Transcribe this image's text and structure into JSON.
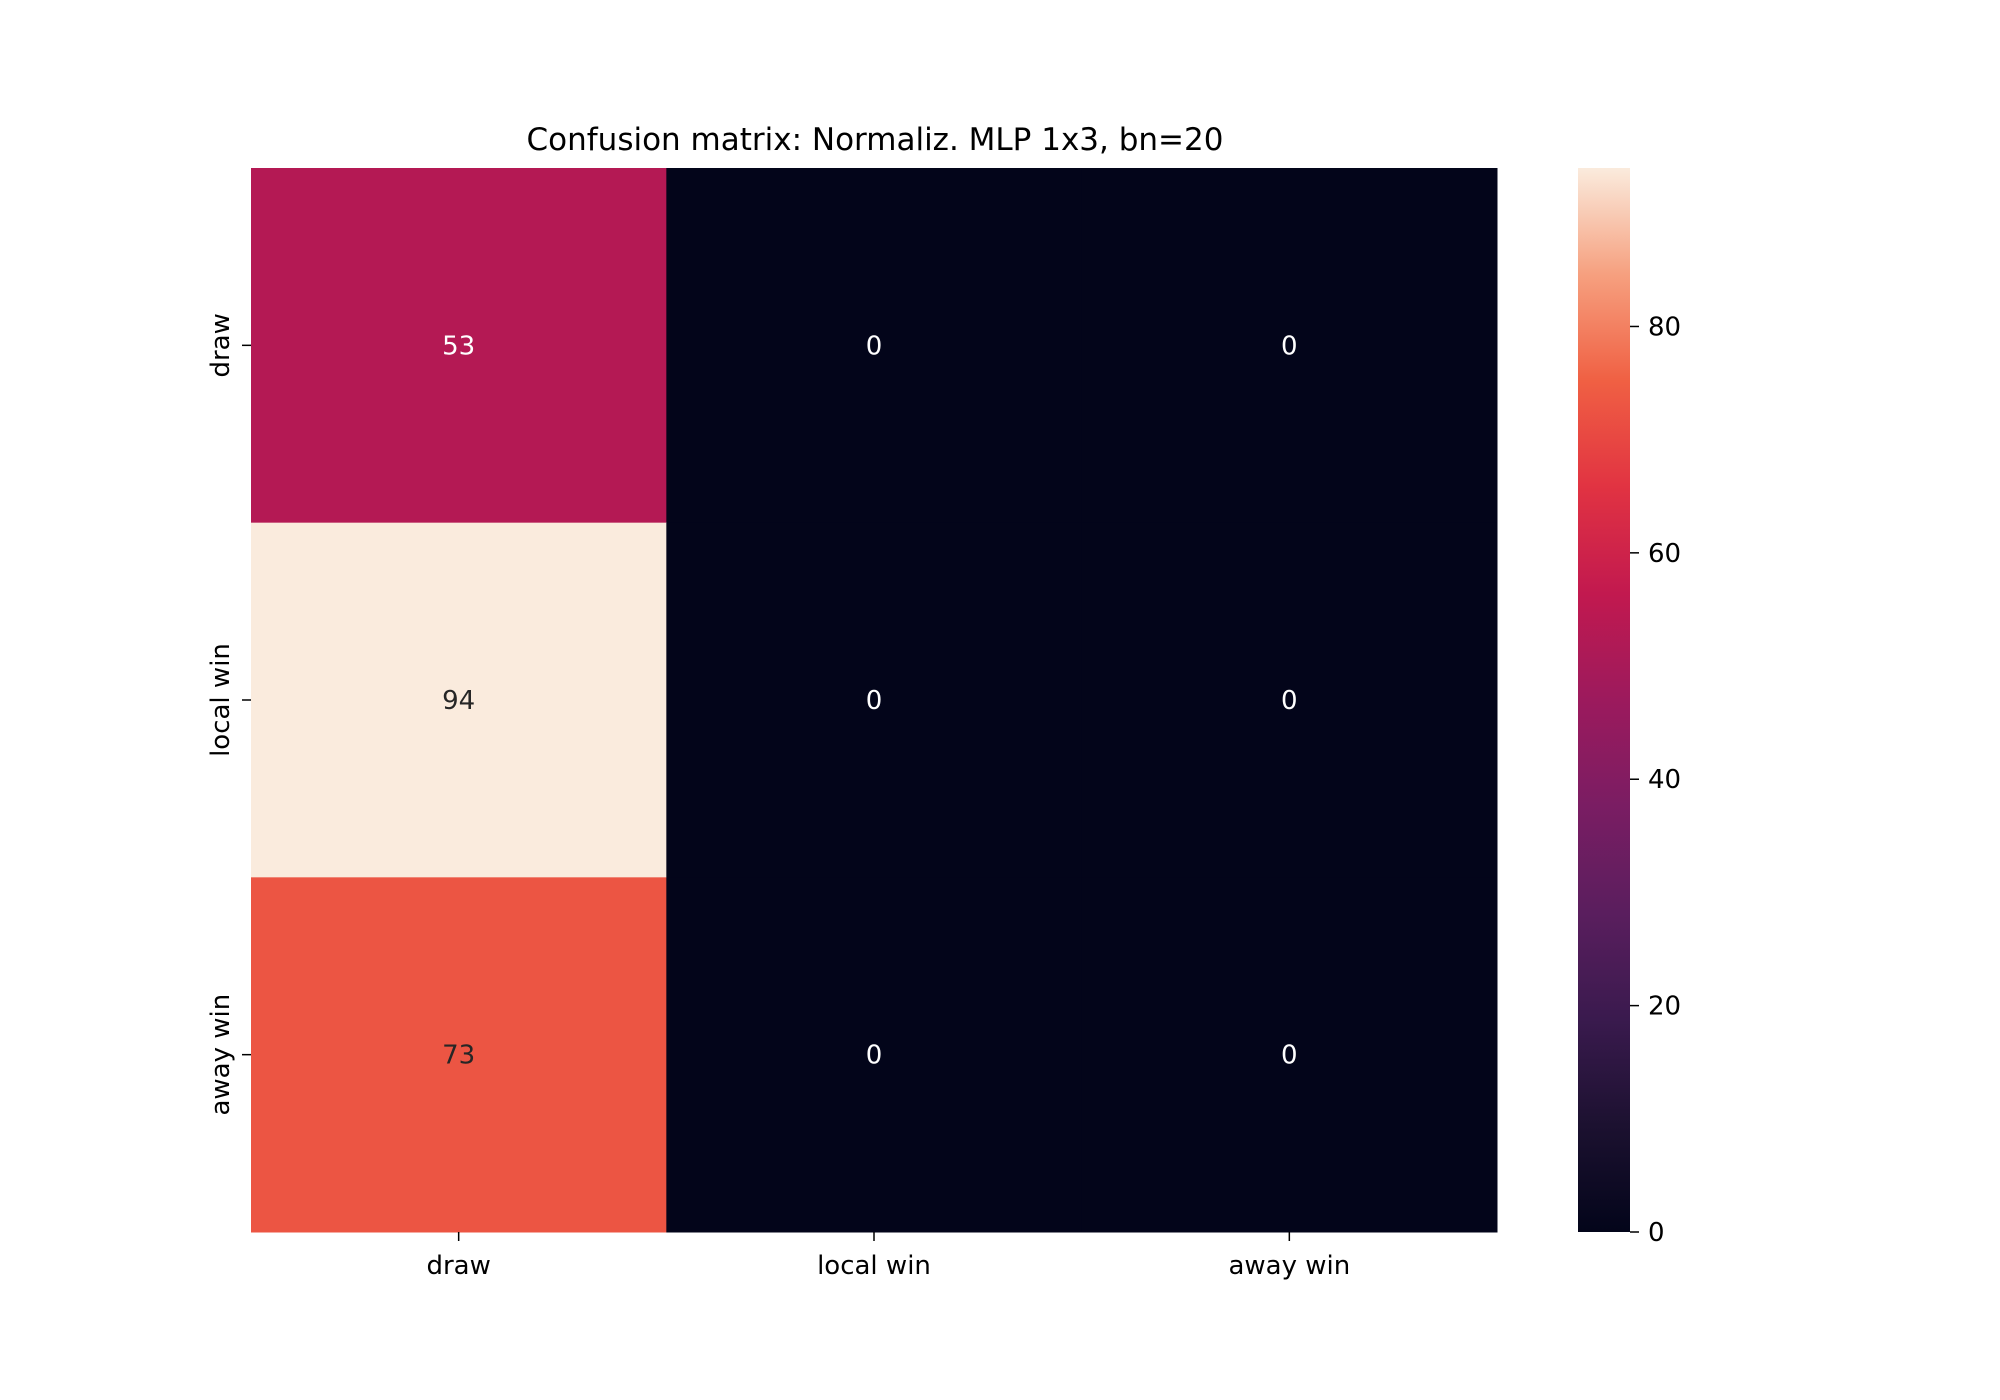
{
  "chart_data": {
    "type": "heatmap",
    "title": "Confusion matrix: Normaliz. MLP 1x3, bn=20",
    "x_categories": [
      "draw",
      "local win",
      "away win"
    ],
    "y_categories": [
      "draw",
      "local win",
      "away win"
    ],
    "values": [
      [
        53,
        0,
        0
      ],
      [
        94,
        0,
        0
      ],
      [
        73,
        0,
        0
      ]
    ],
    "cell_labels": [
      [
        "53",
        "0",
        "0"
      ],
      [
        "94",
        "0",
        "0"
      ],
      [
        "73",
        "0",
        "0"
      ]
    ],
    "colormap": "rocket",
    "colorbar": {
      "min": 0,
      "max": 94,
      "ticks": [
        0,
        20,
        40,
        60,
        80
      ],
      "tick_labels": [
        "0",
        "20",
        "40",
        "60",
        "80"
      ]
    },
    "xlabel": "",
    "ylabel": "",
    "grid": false
  }
}
